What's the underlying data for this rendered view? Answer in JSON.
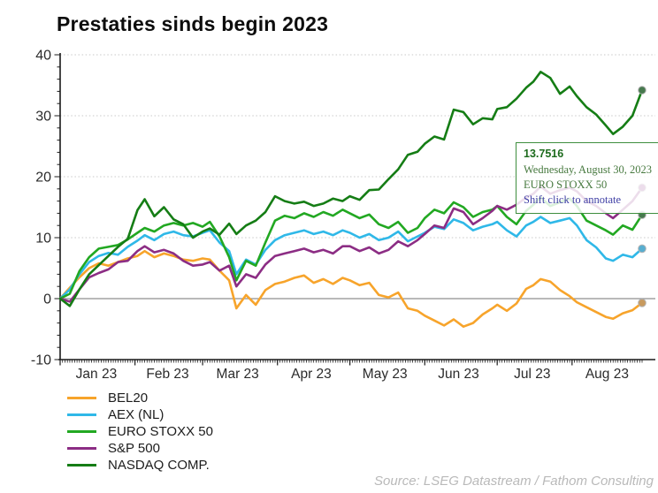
{
  "title": "Prestaties sinds begin 2023",
  "source": "Source: LSEG Datastream / Fathom Consulting",
  "tooltip": {
    "value": "13.7516",
    "date": "Wednesday, August 30, 2023",
    "series": "EURO STOXX 50",
    "hint": "Shift click to annotate"
  },
  "legend": [
    {
      "label": "BEL20",
      "color": "#f7a42b"
    },
    {
      "label": "AEX (NL)",
      "color": "#2fb8e8"
    },
    {
      "label": "EURO STOXX 50",
      "color": "#22a822"
    },
    {
      "label": "S&P 500",
      "color": "#8c2d84"
    },
    {
      "label": "NASDAQ COMP.",
      "color": "#157d15"
    }
  ],
  "chart_data": {
    "type": "line",
    "title": "Prestaties sinds begin 2023",
    "ylabel": "",
    "xlabel": "",
    "ylim": [
      -10,
      40
    ],
    "yticks": [
      -10,
      0,
      10,
      20,
      30,
      40
    ],
    "grid": "horizontal-dotted, solid gray line at 0",
    "legend_position": "bottom-left",
    "x_unit": "day of year 2023 (Jan 1 = 1, Aug 30 = 242)",
    "xlim_days": [
      1,
      242
    ],
    "month_tick_days": [
      1,
      32,
      60,
      91,
      121,
      152,
      182,
      213
    ],
    "month_label_days": [
      16,
      45.5,
      74.5,
      105,
      135.5,
      166,
      196.5,
      227.5
    ],
    "xticklabels": [
      "Jan 23",
      "Feb 23",
      "Mar 23",
      "Apr 23",
      "May 23",
      "Jun 23",
      "Jul 23",
      "Aug 23"
    ],
    "x": [
      1,
      5,
      9,
      13,
      17,
      21,
      25,
      29,
      33,
      36,
      40,
      44,
      48,
      52,
      56,
      60,
      63,
      67,
      71,
      74,
      78,
      82,
      86,
      90,
      94,
      98,
      102,
      106,
      110,
      114,
      118,
      121,
      125,
      129,
      133,
      137,
      141,
      145,
      149,
      152,
      156,
      160,
      164,
      168,
      172,
      176,
      180,
      182,
      186,
      190,
      194,
      197,
      200,
      204,
      208,
      212,
      215,
      219,
      223,
      227,
      230,
      234,
      238,
      242
    ],
    "series": [
      {
        "name": "BEL20",
        "color": "#f7a42b",
        "dot_color": "#c89a5e",
        "values": [
          0,
          1.8,
          3.5,
          5.0,
          5.8,
          5.4,
          6.0,
          6.6,
          7.0,
          7.8,
          6.8,
          7.4,
          7.0,
          6.4,
          6.2,
          6.6,
          6.4,
          4.6,
          3.0,
          -1.6,
          0.6,
          -1.0,
          1.4,
          2.4,
          2.8,
          3.4,
          3.8,
          2.6,
          3.2,
          2.4,
          3.4,
          3.0,
          2.2,
          2.6,
          0.6,
          0.2,
          1.0,
          -1.6,
          -2.0,
          -2.8,
          -3.6,
          -4.4,
          -3.4,
          -4.6,
          -4.0,
          -2.6,
          -1.6,
          -1.0,
          -2.0,
          -0.8,
          1.6,
          2.2,
          3.2,
          2.8,
          1.4,
          0.4,
          -0.6,
          -1.4,
          -2.2,
          -3.0,
          -3.3,
          -2.4,
          -1.9,
          -0.7
        ]
      },
      {
        "name": "AEX (NL)",
        "color": "#2fb8e8",
        "dot_color": "#58aed0",
        "values": [
          0,
          1.5,
          4.0,
          6.0,
          7.0,
          7.5,
          7.2,
          8.5,
          9.5,
          10.4,
          9.6,
          10.6,
          11.0,
          10.4,
          10.2,
          10.8,
          11.2,
          9.2,
          7.8,
          4.0,
          6.4,
          5.6,
          8.0,
          9.6,
          10.4,
          10.8,
          11.2,
          10.6,
          11.0,
          10.4,
          11.2,
          10.8,
          10.0,
          10.6,
          9.6,
          10.0,
          11.0,
          9.4,
          10.2,
          10.8,
          11.8,
          11.4,
          13.0,
          12.4,
          11.2,
          11.8,
          12.2,
          12.6,
          11.2,
          10.2,
          12.0,
          12.6,
          13.4,
          12.4,
          12.8,
          13.2,
          12.0,
          9.6,
          8.4,
          6.6,
          6.2,
          7.2,
          6.8,
          8.2
        ]
      },
      {
        "name": "EURO STOXX 50",
        "color": "#22a822",
        "dot_color": "#47794e",
        "values": [
          0,
          0.8,
          4.5,
          6.8,
          8.2,
          8.5,
          8.8,
          9.7,
          10.8,
          11.6,
          11.0,
          12.0,
          12.4,
          12.0,
          12.4,
          11.8,
          12.6,
          10.2,
          6.8,
          3.0,
          6.2,
          5.4,
          9.2,
          12.8,
          13.6,
          13.2,
          14.0,
          13.4,
          14.2,
          13.6,
          14.6,
          14.0,
          13.2,
          13.8,
          12.2,
          11.6,
          12.6,
          10.8,
          11.6,
          13.2,
          14.6,
          14.0,
          15.8,
          15.0,
          13.4,
          14.2,
          14.6,
          15.2,
          13.4,
          12.2,
          14.4,
          15.4,
          16.6,
          15.2,
          15.8,
          16.4,
          15.2,
          12.8,
          12.0,
          11.2,
          10.5,
          12.0,
          11.3,
          13.75
        ]
      },
      {
        "name": "S&P 500",
        "color": "#8c2d84",
        "dot_color": "#8c2d84",
        "values": [
          0,
          -0.5,
          1.5,
          3.5,
          4.2,
          4.8,
          6.0,
          6.2,
          7.8,
          8.6,
          7.6,
          8.0,
          7.4,
          6.2,
          5.4,
          5.6,
          6.0,
          4.6,
          5.4,
          2.0,
          4.0,
          3.4,
          5.6,
          7.0,
          7.4,
          7.8,
          8.2,
          7.6,
          8.0,
          7.4,
          8.6,
          8.6,
          7.8,
          8.4,
          7.4,
          8.0,
          9.4,
          8.6,
          9.6,
          10.6,
          12.0,
          11.6,
          14.8,
          14.2,
          12.2,
          13.2,
          14.4,
          15.2,
          14.6,
          15.4,
          16.6,
          17.2,
          18.4,
          17.2,
          17.8,
          18.2,
          17.6,
          16.0,
          15.2,
          14.0,
          13.2,
          14.6,
          16.0,
          18.2
        ]
      },
      {
        "name": "NASDAQ COMP.",
        "color": "#157d15",
        "dot_color": "#47794e",
        "values": [
          0,
          -1.2,
          1.5,
          4.0,
          5.5,
          7.0,
          8.5,
          9.8,
          14.5,
          16.3,
          13.5,
          15.0,
          13.0,
          12.2,
          10.0,
          11.0,
          11.5,
          10.5,
          12.3,
          10.6,
          12.0,
          12.8,
          14.2,
          16.8,
          16.0,
          15.6,
          15.9,
          15.2,
          15.6,
          16.4,
          16.0,
          16.8,
          16.2,
          17.8,
          17.9,
          19.6,
          21.2,
          23.6,
          24.1,
          25.4,
          26.6,
          26.1,
          31.0,
          30.6,
          28.6,
          29.6,
          29.4,
          31.1,
          31.4,
          32.8,
          34.6,
          35.6,
          37.2,
          36.2,
          33.6,
          34.8,
          33.2,
          31.4,
          30.2,
          28.4,
          27.0,
          28.2,
          30.0,
          34.2
        ]
      }
    ],
    "end_markers": [
      {
        "series": "NASDAQ COMP.",
        "value": 34.2
      },
      {
        "series": "S&P 500",
        "value": 18.2
      },
      {
        "series": "EURO STOXX 50",
        "value": 13.75
      },
      {
        "series": "AEX (NL)",
        "value": 8.2
      },
      {
        "series": "BEL20",
        "value": -0.7
      }
    ],
    "annotation": "tooltip shows EURO STOXX 50 = 13.7516 on Wednesday, August 30, 2023"
  }
}
